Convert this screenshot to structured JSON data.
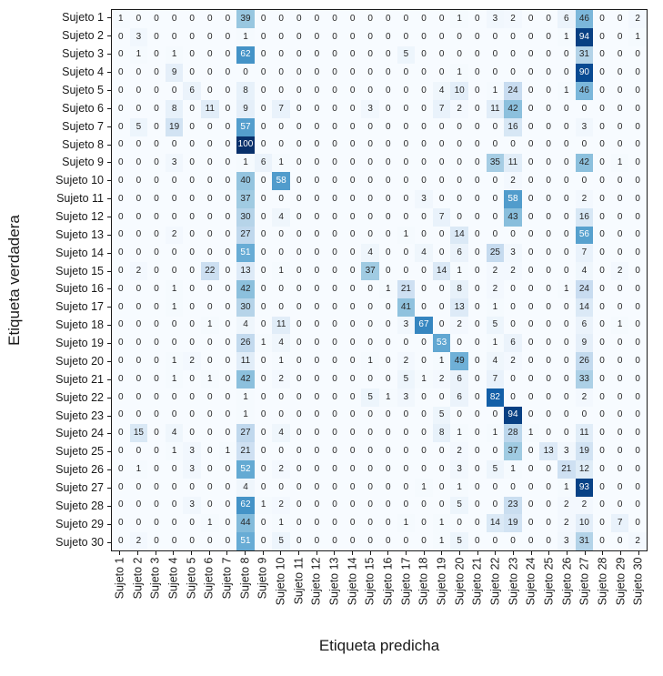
{
  "chart_data": {
    "type": "heatmap",
    "title": "",
    "xlabel": "Etiqueta predicha",
    "ylabel": "Etiqueta verdadera",
    "colormap": "Blues",
    "vmin": 0,
    "vmax": 100,
    "colormap_stops": [
      "#f7fbff",
      "#deebf7",
      "#c6dbef",
      "#9ecae1",
      "#6baed6",
      "#4292c6",
      "#2171b5",
      "#08519c",
      "#08306b"
    ],
    "text_threshold": 50,
    "text_color_low": "#262626",
    "text_color_high": "#ffffff",
    "axis_color": "#1a1a1a",
    "row_labels": [
      "Sujeto 1",
      "Sujeto 2",
      "Sujeto 3",
      "Sujeto 4",
      "Sujeto 5",
      "Sujeto 6",
      "Sujeto 7",
      "Sujeto 8",
      "Sujeto 9",
      "Sujeto 10",
      "Sujeto 11",
      "Sujeto 12",
      "Sujeto 13",
      "Sujeto 14",
      "Sujeto 15",
      "Sujeto 16",
      "Sujeto 17",
      "Sujeto 18",
      "Sujeto 19",
      "Sujeto 20",
      "Sujeto 21",
      "Sujeto 22",
      "Sujeto 23",
      "Sujeto 24",
      "Sujeto 25",
      "Sujeto 26",
      "Sujeto 27",
      "Sujeto 28",
      "Sujeto 29",
      "Sujeto 30"
    ],
    "col_labels": [
      "Sujeto 1",
      "Sujeto 2",
      "Sujeto 3",
      "Sujeto 4",
      "Sujeto 5",
      "Sujeto 6",
      "Sujeto 7",
      "Sujeto 8",
      "Sujeto 9",
      "Sujeto 10",
      "Sujeto 11",
      "Sujeto 12",
      "Sujeto 13",
      "Sujeto 14",
      "Sujeto 15",
      "Sujeto 16",
      "Sujeto 17",
      "Sujeto 18",
      "Sujeto 19",
      "Sujeto 20",
      "Sujeto 21",
      "Sujeto 22",
      "Sujeto 23",
      "Sujeto 24",
      "Sujeto 25",
      "Sujeto 26",
      "Sujeto 27",
      "Sujeto 28",
      "Sujeto 29",
      "Sujeto 30"
    ],
    "matrix": [
      [
        1,
        0,
        0,
        0,
        0,
        0,
        0,
        39,
        0,
        0,
        0,
        0,
        0,
        0,
        0,
        0,
        0,
        0,
        0,
        1,
        0,
        3,
        2,
        0,
        0,
        6,
        46,
        0,
        0,
        2
      ],
      [
        0,
        3,
        0,
        0,
        0,
        0,
        0,
        1,
        0,
        0,
        0,
        0,
        0,
        0,
        0,
        0,
        0,
        0,
        0,
        0,
        0,
        0,
        0,
        0,
        0,
        1,
        94,
        0,
        0,
        1
      ],
      [
        0,
        1,
        0,
        1,
        0,
        0,
        0,
        62,
        0,
        0,
        0,
        0,
        0,
        0,
        0,
        0,
        5,
        0,
        0,
        0,
        0,
        0,
        0,
        0,
        0,
        0,
        31,
        0,
        0,
        0
      ],
      [
        0,
        0,
        0,
        9,
        0,
        0,
        0,
        0,
        0,
        0,
        0,
        0,
        0,
        0,
        0,
        0,
        0,
        0,
        0,
        1,
        0,
        0,
        0,
        0,
        0,
        0,
        90,
        0,
        0,
        0
      ],
      [
        0,
        0,
        0,
        0,
        6,
        0,
        0,
        8,
        0,
        0,
        0,
        0,
        0,
        0,
        0,
        0,
        0,
        0,
        4,
        10,
        0,
        1,
        24,
        0,
        0,
        1,
        46,
        0,
        0,
        0
      ],
      [
        0,
        0,
        0,
        8,
        0,
        11,
        0,
        9,
        0,
        7,
        0,
        0,
        0,
        0,
        3,
        0,
        0,
        0,
        7,
        2,
        0,
        11,
        42,
        0,
        0,
        0,
        0,
        0,
        0,
        0
      ],
      [
        0,
        5,
        0,
        19,
        0,
        0,
        0,
        57,
        0,
        0,
        0,
        0,
        0,
        0,
        0,
        0,
        0,
        0,
        0,
        0,
        0,
        0,
        16,
        0,
        0,
        0,
        3,
        0,
        0,
        0
      ],
      [
        0,
        0,
        0,
        0,
        0,
        0,
        0,
        100,
        0,
        0,
        0,
        0,
        0,
        0,
        0,
        0,
        0,
        0,
        0,
        0,
        0,
        0,
        0,
        0,
        0,
        0,
        0,
        0,
        0,
        0
      ],
      [
        0,
        0,
        0,
        3,
        0,
        0,
        0,
        1,
        6,
        1,
        0,
        0,
        0,
        0,
        0,
        0,
        0,
        0,
        0,
        0,
        0,
        35,
        11,
        0,
        0,
        0,
        42,
        0,
        1,
        0
      ],
      [
        0,
        0,
        0,
        0,
        0,
        0,
        0,
        40,
        0,
        58,
        0,
        0,
        0,
        0,
        0,
        0,
        0,
        0,
        0,
        0,
        0,
        0,
        2,
        0,
        0,
        0,
        0,
        0,
        0,
        0
      ],
      [
        0,
        0,
        0,
        0,
        0,
        0,
        0,
        37,
        0,
        0,
        0,
        0,
        0,
        0,
        0,
        0,
        0,
        3,
        0,
        0,
        0,
        0,
        58,
        0,
        0,
        0,
        2,
        0,
        0,
        0
      ],
      [
        0,
        0,
        0,
        0,
        0,
        0,
        0,
        30,
        0,
        4,
        0,
        0,
        0,
        0,
        0,
        0,
        0,
        0,
        7,
        0,
        0,
        0,
        43,
        0,
        0,
        0,
        16,
        0,
        0,
        0
      ],
      [
        0,
        0,
        0,
        2,
        0,
        0,
        0,
        27,
        0,
        0,
        0,
        0,
        0,
        0,
        0,
        0,
        1,
        0,
        0,
        14,
        0,
        0,
        0,
        0,
        0,
        0,
        56,
        0,
        0,
        0
      ],
      [
        0,
        0,
        0,
        0,
        0,
        0,
        0,
        51,
        0,
        0,
        0,
        0,
        0,
        0,
        4,
        0,
        0,
        4,
        0,
        6,
        0,
        25,
        3,
        0,
        0,
        0,
        7,
        0,
        0,
        0
      ],
      [
        0,
        2,
        0,
        0,
        0,
        22,
        0,
        13,
        0,
        1,
        0,
        0,
        0,
        0,
        37,
        0,
        0,
        0,
        14,
        1,
        0,
        2,
        2,
        0,
        0,
        0,
        4,
        0,
        2,
        0
      ],
      [
        0,
        0,
        0,
        1,
        0,
        0,
        0,
        42,
        0,
        0,
        0,
        0,
        0,
        0,
        0,
        1,
        21,
        0,
        0,
        8,
        0,
        2,
        0,
        0,
        0,
        1,
        24,
        0,
        0,
        0
      ],
      [
        0,
        0,
        0,
        1,
        0,
        0,
        0,
        30,
        0,
        0,
        0,
        0,
        0,
        0,
        0,
        0,
        41,
        0,
        0,
        13,
        0,
        1,
        0,
        0,
        0,
        0,
        14,
        0,
        0,
        0
      ],
      [
        0,
        0,
        0,
        0,
        0,
        1,
        0,
        4,
        0,
        11,
        0,
        0,
        0,
        0,
        0,
        0,
        3,
        67,
        0,
        2,
        0,
        5,
        0,
        0,
        0,
        0,
        6,
        0,
        1,
        0
      ],
      [
        0,
        0,
        0,
        0,
        0,
        0,
        0,
        26,
        1,
        4,
        0,
        0,
        0,
        0,
        0,
        0,
        0,
        0,
        53,
        0,
        0,
        1,
        6,
        0,
        0,
        0,
        9,
        0,
        0,
        0
      ],
      [
        0,
        0,
        0,
        1,
        2,
        0,
        0,
        11,
        0,
        1,
        0,
        0,
        0,
        0,
        1,
        0,
        2,
        0,
        1,
        49,
        0,
        4,
        2,
        0,
        0,
        0,
        26,
        0,
        0,
        0
      ],
      [
        0,
        0,
        0,
        1,
        0,
        1,
        0,
        42,
        0,
        2,
        0,
        0,
        0,
        0,
        0,
        0,
        5,
        1,
        2,
        6,
        0,
        7,
        0,
        0,
        0,
        0,
        33,
        0,
        0,
        0
      ],
      [
        0,
        0,
        0,
        0,
        0,
        0,
        0,
        1,
        0,
        0,
        0,
        0,
        0,
        0,
        5,
        1,
        3,
        0,
        0,
        6,
        0,
        82,
        0,
        0,
        0,
        0,
        2,
        0,
        0,
        0
      ],
      [
        0,
        0,
        0,
        0,
        0,
        0,
        0,
        1,
        0,
        0,
        0,
        0,
        0,
        0,
        0,
        0,
        0,
        0,
        5,
        0,
        0,
        0,
        94,
        0,
        0,
        0,
        0,
        0,
        0,
        0
      ],
      [
        0,
        15,
        0,
        4,
        0,
        0,
        0,
        27,
        0,
        4,
        0,
        0,
        0,
        0,
        0,
        0,
        0,
        0,
        8,
        1,
        0,
        1,
        28,
        1,
        0,
        0,
        11,
        0,
        0,
        0
      ],
      [
        0,
        0,
        0,
        1,
        3,
        0,
        1,
        21,
        0,
        0,
        0,
        0,
        0,
        0,
        0,
        0,
        0,
        0,
        0,
        2,
        0,
        0,
        37,
        0,
        13,
        3,
        19,
        0,
        0,
        0
      ],
      [
        0,
        1,
        0,
        0,
        3,
        0,
        0,
        52,
        0,
        2,
        0,
        0,
        0,
        0,
        0,
        0,
        0,
        0,
        0,
        3,
        0,
        5,
        1,
        0,
        0,
        21,
        12,
        0,
        0,
        0
      ],
      [
        0,
        0,
        0,
        0,
        0,
        0,
        0,
        4,
        0,
        0,
        0,
        0,
        0,
        0,
        0,
        0,
        0,
        1,
        0,
        1,
        0,
        0,
        0,
        0,
        0,
        1,
        93,
        0,
        0,
        0
      ],
      [
        0,
        0,
        0,
        0,
        3,
        0,
        0,
        62,
        1,
        2,
        0,
        0,
        0,
        0,
        0,
        0,
        0,
        0,
        0,
        5,
        0,
        0,
        23,
        0,
        0,
        2,
        2,
        0,
        0,
        0
      ],
      [
        0,
        0,
        0,
        0,
        0,
        1,
        0,
        44,
        0,
        1,
        0,
        0,
        0,
        0,
        0,
        0,
        1,
        0,
        1,
        0,
        0,
        14,
        19,
        0,
        0,
        2,
        10,
        0,
        7,
        0
      ],
      [
        0,
        2,
        0,
        0,
        0,
        0,
        0,
        51,
        0,
        5,
        0,
        0,
        0,
        0,
        0,
        0,
        0,
        0,
        1,
        5,
        0,
        0,
        0,
        0,
        0,
        3,
        31,
        0,
        0,
        2
      ]
    ]
  }
}
